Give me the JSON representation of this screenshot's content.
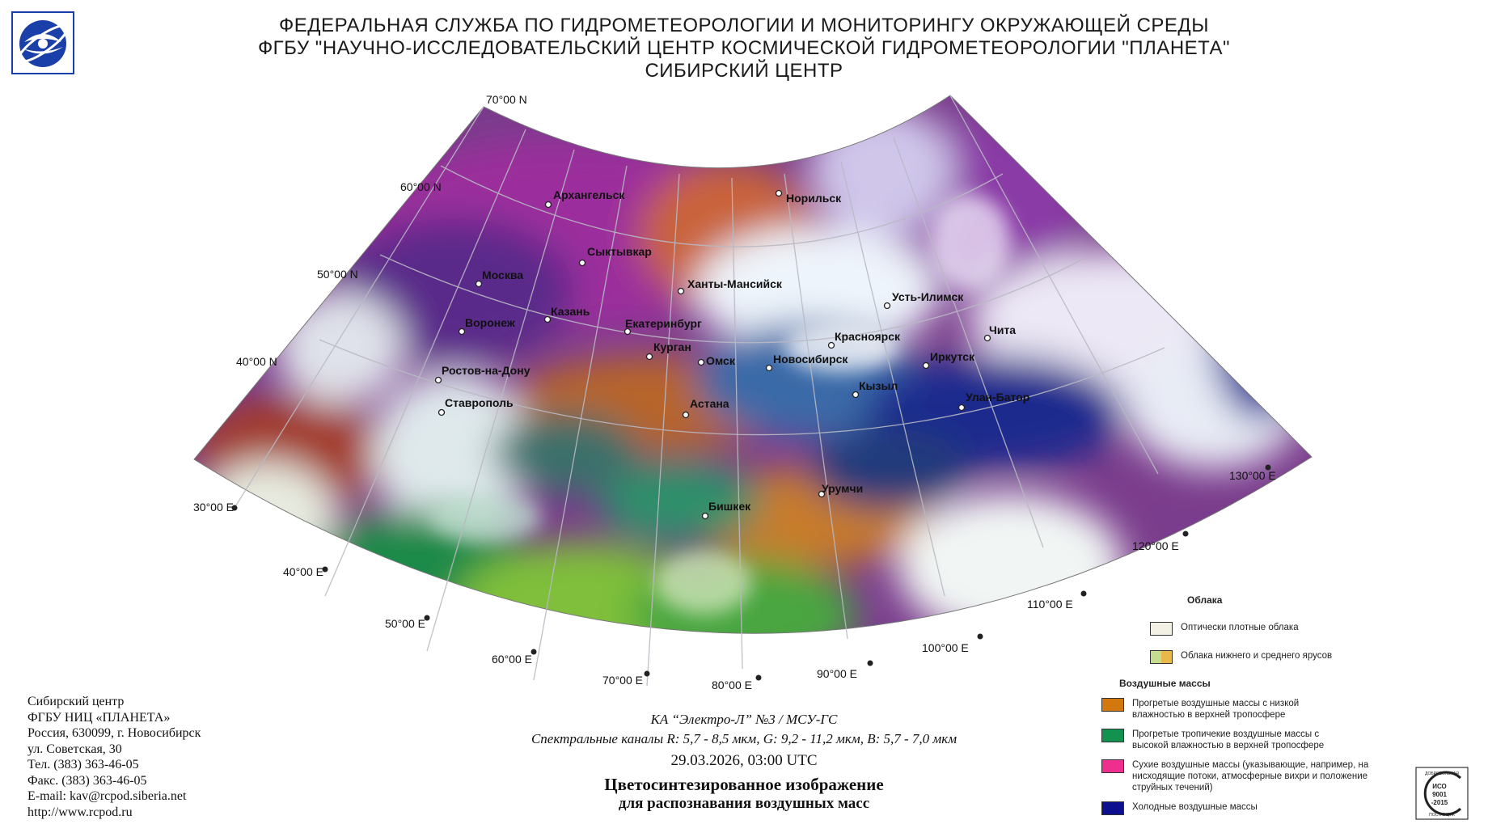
{
  "header": {
    "line1": "ФЕДЕРАЛЬНАЯ СЛУЖБА ПО ГИДРОМЕТЕОРОЛОГИИ И МОНИТОРИНГУ ОКРУЖАЮЩЕЙ СРЕДЫ",
    "line2": "ФГБУ \"НАУЧНО-ИССЛЕДОВАТЕЛЬСКИЙ ЦЕНТР КОСМИЧЕСКОЙ ГИДРОМЕТЕОРОЛОГИИ \"ПЛАНЕТА\"",
    "line3": "СИБИРСКИЙ ЦЕНТР"
  },
  "grid_labels": {
    "lat70": "70°00 N",
    "lat60": "60°00 N",
    "lat50": "50°00 N",
    "lat40": "40°00 N",
    "lon30": "30°00 E",
    "lon40": "40°00 E",
    "lon50": "50°00 E",
    "lon60": "60°00 E",
    "lon70": "70°00 E",
    "lon80": "80°00 E",
    "lon90": "90°00 E",
    "lon100": "100°00 E",
    "lon110": "110°00 E",
    "lon120": "120°00 E",
    "lon130": "130°00 E"
  },
  "cities": {
    "arkhangelsk": "Архангельск",
    "norilsk": "Норильск",
    "syktyvkar": "Сыктывкар",
    "moscow": "Москва",
    "khanty": "Ханты-Мансийск",
    "ust_ilimsk": "Усть-Илимск",
    "kazan": "Казань",
    "voronezh": "Воронеж",
    "ekaterinburg": "Екатеринбург",
    "krasnoyarsk": "Красноярск",
    "chita": "Чита",
    "kurgan": "Курган",
    "omsk": "Омск",
    "novosibirsk": "Новосибирск",
    "irkutsk": "Иркутск",
    "rostov": "Ростов-на-Дону",
    "kyzyl": "Кызыл",
    "ulan_bator": "Улан-Батор",
    "stavropol": "Ставрополь",
    "astana": "Астана",
    "urumqi": "Урумчи",
    "bishkek": "Бишкек"
  },
  "caption": {
    "satellite": "КА “Электро-Л” №3 / МСУ-ГС",
    "channels": "Спектральные каналы R: 5,7 - 8,5 мкм, G: 9,2 - 11,2 мкм, B: 5,7 - 7,0 мкм",
    "datetime": "29.03.2026, 03:00 UTC",
    "title1": "Цветосинтезированное изображение",
    "title2": "для распознавания воздушных масс"
  },
  "contact": {
    "l1": "Сибирский центр",
    "l2": "ФГБУ НИЦ «ПЛАНЕТА»",
    "l3": "Россия, 630099, г. Новосибирск",
    "l4": "ул. Советская, 30",
    "l5": "Тел. (383) 363-46-05",
    "l6": "Факс. (383) 363-46-05",
    "l7": "E-mail: kav@rcpod.siberia.net",
    "l8": "http://www.rcpod.ru"
  },
  "legend": {
    "clouds_heading": "Облака",
    "dense_clouds": "Оптически плотные облака",
    "low_mid_clouds": "Облака нижнего и среднего ярусов",
    "airmass_heading": "Воздушные массы",
    "warm_dry": "Прогретые воздушные массы с низкой влажностью в верхней тропосфере",
    "warm_tropical": "Прогретые тропичекие воздушные массы с высокой влажностью в верхней тропосфере",
    "dry": "Сухие воздушные массы (указывающие, например, на нисходящие потоки, атмосферные вихри и положение струйных течений)",
    "cold": "Холодные воздушные массы",
    "colors": {
      "dense_clouds": "#f3f1e6",
      "low_mid_a": "#c4dd8f",
      "low_mid_b": "#e9b84a",
      "warm_dry": "#d2780f",
      "warm_tropical": "#13914f",
      "dry": "#ef2f8e",
      "cold": "#0c0f8e"
    }
  },
  "iso": {
    "top": "ДОБРОВОЛЬНАЯ",
    "l1": "ИСО",
    "l2": "9001",
    "l3": "-2015",
    "bottom": "ПОСТАВЩИК"
  }
}
